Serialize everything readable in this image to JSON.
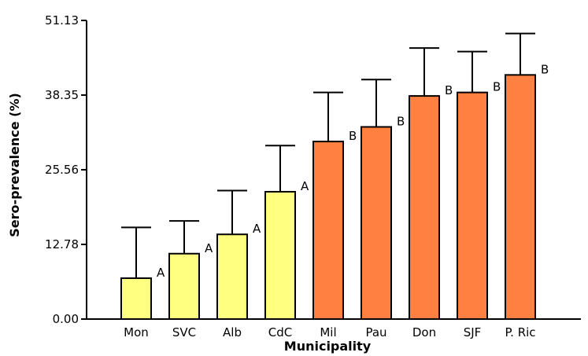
{
  "chart_data": {
    "type": "bar",
    "xlabel": "Municipality",
    "ylabel": "Sero-prevalence (%)",
    "ylim": [
      0,
      51.13
    ],
    "yticks": [
      "0.00",
      "12.78",
      "25.56",
      "38.35",
      "51.13"
    ],
    "categories": [
      "Mon",
      "SVC",
      "Alb",
      "CdC",
      "Mil",
      "Pau",
      "Don",
      "SJF",
      "P. Ric"
    ],
    "values": [
      7.0,
      11.2,
      14.5,
      21.8,
      30.4,
      32.9,
      38.2,
      38.8,
      41.8
    ],
    "error_upper": [
      15.7,
      16.8,
      22.0,
      29.7,
      38.8,
      41.0,
      46.4,
      45.8,
      48.9
    ],
    "group_labels": [
      "A",
      "A",
      "A",
      "A",
      "B",
      "B",
      "B",
      "B",
      "B"
    ],
    "colors": {
      "group_A": "#ffff80",
      "group_B": "#ff8040",
      "bar_edge": "#000000",
      "error_bar": "#000000"
    },
    "grid": false,
    "legend": "none"
  }
}
